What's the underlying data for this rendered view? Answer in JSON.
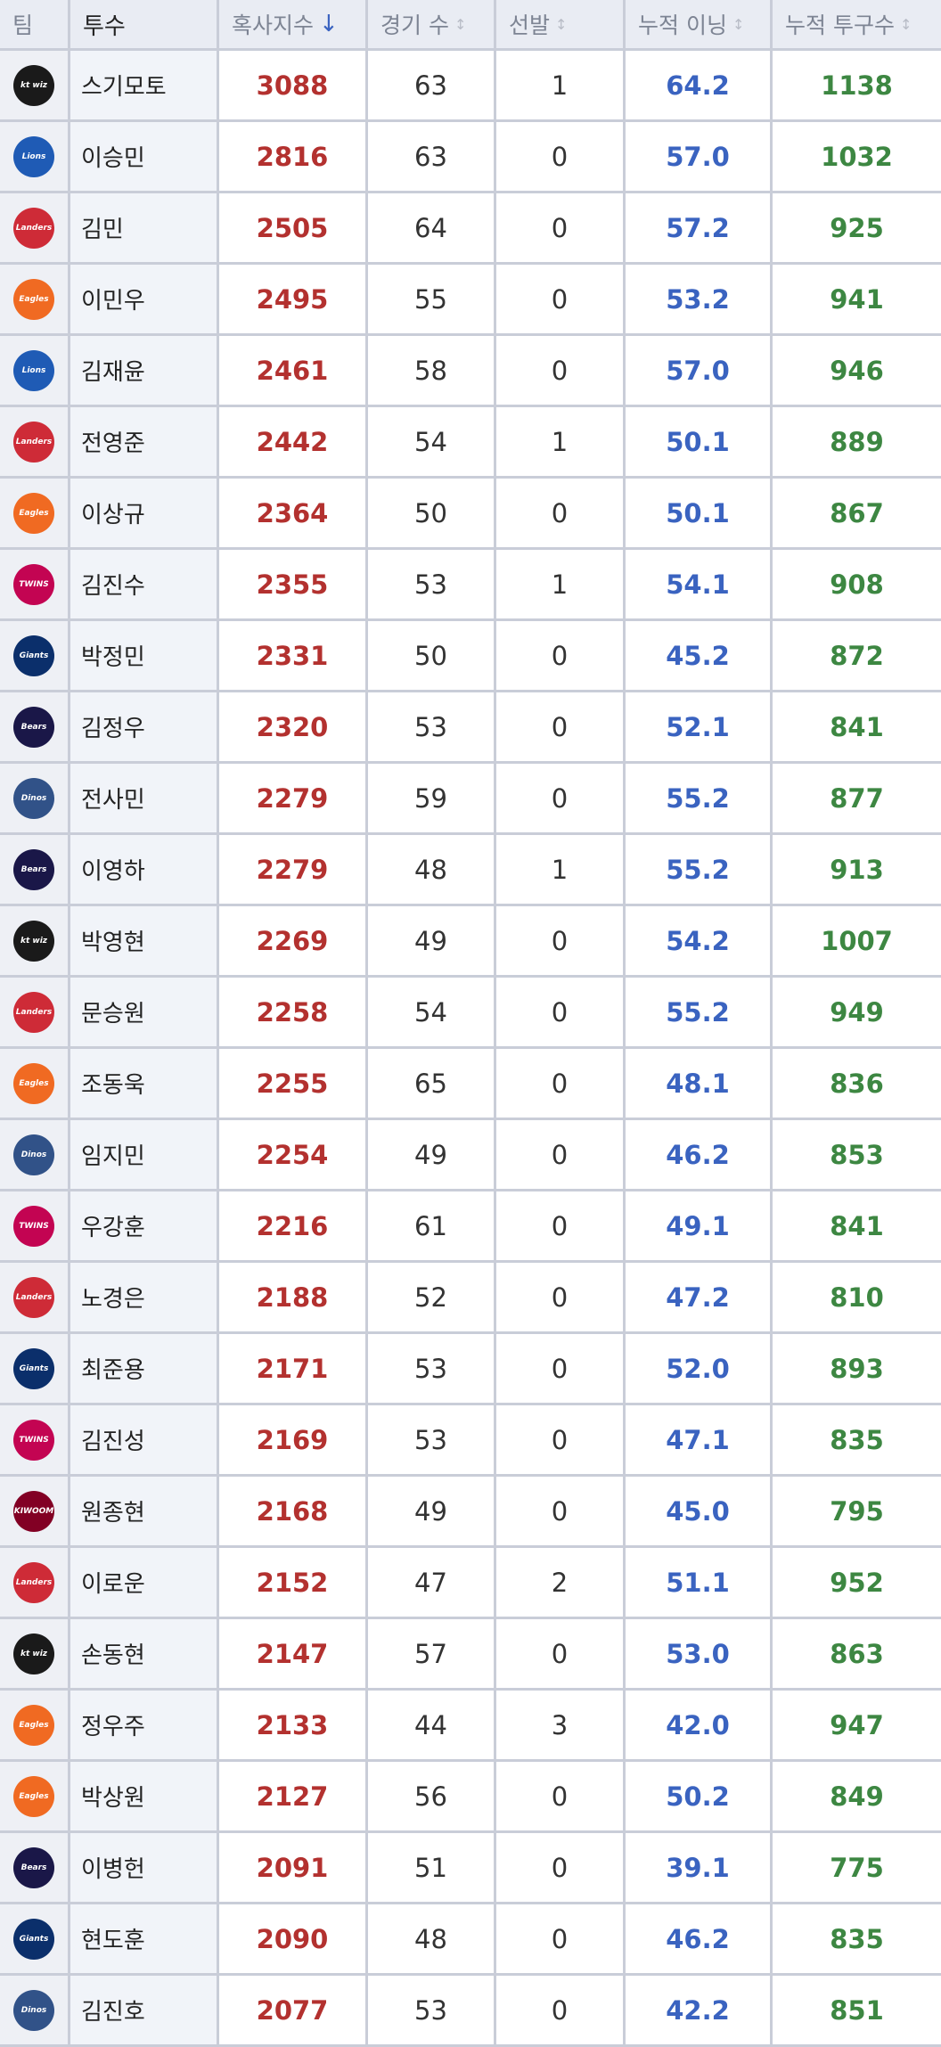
{
  "table": {
    "headers": [
      {
        "label": "팀"
      },
      {
        "label": "투수"
      },
      {
        "label": "혹사지수",
        "sort": "↓"
      },
      {
        "label": "경기 수",
        "sort": "↕"
      },
      {
        "label": "선발",
        "sort": "↕"
      },
      {
        "label": "누적 이닝",
        "sort": "↕"
      },
      {
        "label": "누적 투구수",
        "sort": "↕"
      }
    ],
    "rows": [
      {
        "team": "kt wiz",
        "team_color": "#1a1a1a",
        "pitcher": "스기모토",
        "index": 3088,
        "games": 63,
        "starts": 1,
        "innings": "64.2",
        "pitches": 1138
      },
      {
        "team": "Lions",
        "team_color": "#1f5bb5",
        "pitcher": "이승민",
        "index": 2816,
        "games": 63,
        "starts": 0,
        "innings": "57.0",
        "pitches": 1032
      },
      {
        "team": "Landers",
        "team_color": "#ce2b37",
        "pitcher": "김민",
        "index": 2505,
        "games": 64,
        "starts": 0,
        "innings": "57.2",
        "pitches": 925
      },
      {
        "team": "Eagles",
        "team_color": "#f06a22",
        "pitcher": "이민우",
        "index": 2495,
        "games": 55,
        "starts": 0,
        "innings": "53.2",
        "pitches": 941
      },
      {
        "team": "Lions",
        "team_color": "#1f5bb5",
        "pitcher": "김재윤",
        "index": 2461,
        "games": 58,
        "starts": 0,
        "innings": "57.0",
        "pitches": 946
      },
      {
        "team": "Landers",
        "team_color": "#ce2b37",
        "pitcher": "전영준",
        "index": 2442,
        "games": 54,
        "starts": 1,
        "innings": "50.1",
        "pitches": 889
      },
      {
        "team": "Eagles",
        "team_color": "#f06a22",
        "pitcher": "이상규",
        "index": 2364,
        "games": 50,
        "starts": 0,
        "innings": "50.1",
        "pitches": 867
      },
      {
        "team": "TWINS",
        "team_color": "#c30452",
        "pitcher": "김진수",
        "index": 2355,
        "games": 53,
        "starts": 1,
        "innings": "54.1",
        "pitches": 908
      },
      {
        "team": "Giants",
        "team_color": "#0b2f6b",
        "pitcher": "박정민",
        "index": 2331,
        "games": 50,
        "starts": 0,
        "innings": "45.2",
        "pitches": 872
      },
      {
        "team": "Bears",
        "team_color": "#1a1748",
        "pitcher": "김정우",
        "index": 2320,
        "games": 53,
        "starts": 0,
        "innings": "52.1",
        "pitches": 841
      },
      {
        "team": "Dinos",
        "team_color": "#315288",
        "pitcher": "전사민",
        "index": 2279,
        "games": 59,
        "starts": 0,
        "innings": "55.2",
        "pitches": 877
      },
      {
        "team": "Bears",
        "team_color": "#1a1748",
        "pitcher": "이영하",
        "index": 2279,
        "games": 48,
        "starts": 1,
        "innings": "55.2",
        "pitches": 913
      },
      {
        "team": "kt wiz",
        "team_color": "#1a1a1a",
        "pitcher": "박영현",
        "index": 2269,
        "games": 49,
        "starts": 0,
        "innings": "54.2",
        "pitches": 1007
      },
      {
        "team": "Landers",
        "team_color": "#ce2b37",
        "pitcher": "문승원",
        "index": 2258,
        "games": 54,
        "starts": 0,
        "innings": "55.2",
        "pitches": 949
      },
      {
        "team": "Eagles",
        "team_color": "#f06a22",
        "pitcher": "조동욱",
        "index": 2255,
        "games": 65,
        "starts": 0,
        "innings": "48.1",
        "pitches": 836
      },
      {
        "team": "Dinos",
        "team_color": "#315288",
        "pitcher": "임지민",
        "index": 2254,
        "games": 49,
        "starts": 0,
        "innings": "46.2",
        "pitches": 853
      },
      {
        "team": "TWINS",
        "team_color": "#c30452",
        "pitcher": "우강훈",
        "index": 2216,
        "games": 61,
        "starts": 0,
        "innings": "49.1",
        "pitches": 841
      },
      {
        "team": "Landers",
        "team_color": "#ce2b37",
        "pitcher": "노경은",
        "index": 2188,
        "games": 52,
        "starts": 0,
        "innings": "47.2",
        "pitches": 810
      },
      {
        "team": "Giants",
        "team_color": "#0b2f6b",
        "pitcher": "최준용",
        "index": 2171,
        "games": 53,
        "starts": 0,
        "innings": "52.0",
        "pitches": 893
      },
      {
        "team": "TWINS",
        "team_color": "#c30452",
        "pitcher": "김진성",
        "index": 2169,
        "games": 53,
        "starts": 0,
        "innings": "47.1",
        "pitches": 835
      },
      {
        "team": "KIWOOM",
        "team_color": "#820024",
        "pitcher": "원종현",
        "index": 2168,
        "games": 49,
        "starts": 0,
        "innings": "45.0",
        "pitches": 795
      },
      {
        "team": "Landers",
        "team_color": "#ce2b37",
        "pitcher": "이로운",
        "index": 2152,
        "games": 47,
        "starts": 2,
        "innings": "51.1",
        "pitches": 952
      },
      {
        "team": "kt wiz",
        "team_color": "#1a1a1a",
        "pitcher": "손동현",
        "index": 2147,
        "games": 57,
        "starts": 0,
        "innings": "53.0",
        "pitches": 863
      },
      {
        "team": "Eagles",
        "team_color": "#f06a22",
        "pitcher": "정우주",
        "index": 2133,
        "games": 44,
        "starts": 3,
        "innings": "42.0",
        "pitches": 947
      },
      {
        "team": "Eagles",
        "team_color": "#f06a22",
        "pitcher": "박상원",
        "index": 2127,
        "games": 56,
        "starts": 0,
        "innings": "50.2",
        "pitches": 849
      },
      {
        "team": "Bears",
        "team_color": "#1a1748",
        "pitcher": "이병헌",
        "index": 2091,
        "games": 51,
        "starts": 0,
        "innings": "39.1",
        "pitches": 775
      },
      {
        "team": "Giants",
        "team_color": "#0b2f6b",
        "pitcher": "현도훈",
        "index": 2090,
        "games": 48,
        "starts": 0,
        "innings": "46.2",
        "pitches": 835
      },
      {
        "team": "Dinos",
        "team_color": "#315288",
        "pitcher": "김진호",
        "index": 2077,
        "games": 53,
        "starts": 0,
        "innings": "42.2",
        "pitches": 851
      }
    ]
  }
}
